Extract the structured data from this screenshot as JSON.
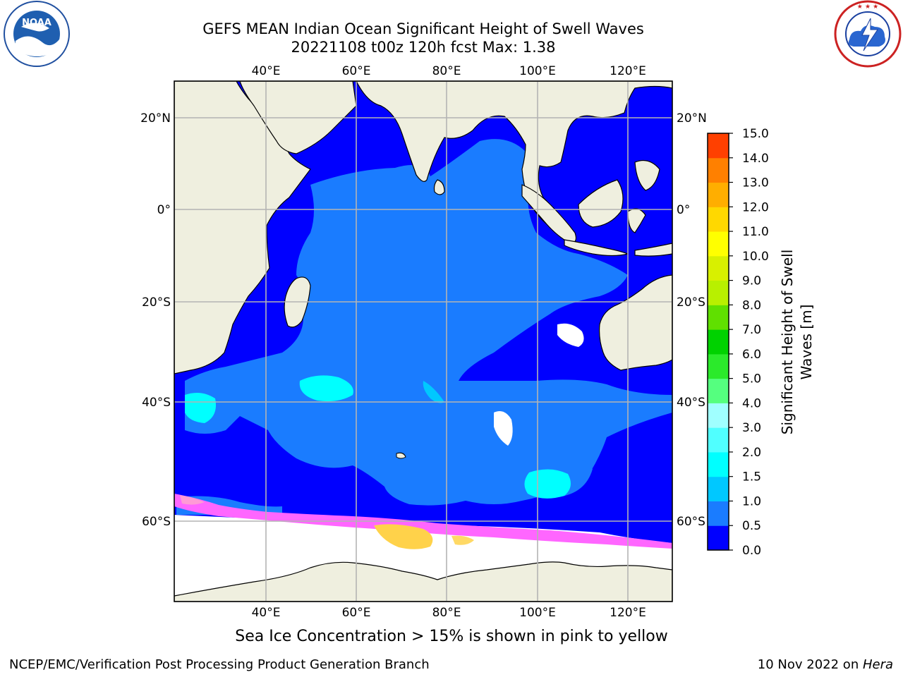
{
  "header": {
    "title_line1": "GEFS MEAN Indian Ocean Significant Height of Swell Waves",
    "title_line2": "20221108 t00z 120h fcst   Max: 1.38"
  },
  "logos": {
    "noaa": {
      "icon": "noaa-logo-icon",
      "text": "NOAA",
      "ring_text": "NATIONAL OCEANIC AND ATMOSPHERIC ADMINISTRATION · U.S. DEPARTMENT OF COMMERCE"
    },
    "nws": {
      "icon": "nws-logo-icon",
      "ring_text": "NATIONAL WEATHER SERVICE"
    }
  },
  "map": {
    "lon_labels": [
      "40°E",
      "60°E",
      "80°E",
      "100°E",
      "120°E"
    ],
    "lat_labels": [
      "20°N",
      "0°",
      "20°S",
      "40°S",
      "60°S"
    ],
    "colors": {
      "ocean_low": "#0000ff",
      "ocean_mid": "#1a7cff",
      "ocean_high": "#00ffff",
      "land": "#efefdf",
      "ice_pink": "#ff66ff",
      "ice_yellow": "#ffd24a",
      "grid": "#b4b4b4"
    }
  },
  "colorbar": {
    "label_line1": "Significant Height of Swell",
    "label_line2": "Waves [m]",
    "ticks": [
      "0.0",
      "0.5",
      "1.0",
      "1.5",
      "2.0",
      "3.0",
      "4.0",
      "5.0",
      "6.0",
      "7.0",
      "8.0",
      "9.0",
      "10.0",
      "11.0",
      "12.0",
      "13.0",
      "14.0",
      "15.0"
    ],
    "colors": [
      "#0000ff",
      "#1a7cff",
      "#00c8ff",
      "#00ffff",
      "#50ffff",
      "#a0ffff",
      "#55ff7f",
      "#2bea2b",
      "#00d200",
      "#60e000",
      "#b8f000",
      "#d8f000",
      "#ffff00",
      "#ffd800",
      "#ffae00",
      "#ff8000",
      "#ff4000",
      "#ff0000"
    ]
  },
  "note": "Sea Ice Concentration > 15% is shown in pink to yellow",
  "footer": {
    "left": "NCEP/EMC/Verification Post Processing Product Generation Branch",
    "right_prefix": "10 Nov 2022 on ",
    "right_italic": "Hera"
  }
}
